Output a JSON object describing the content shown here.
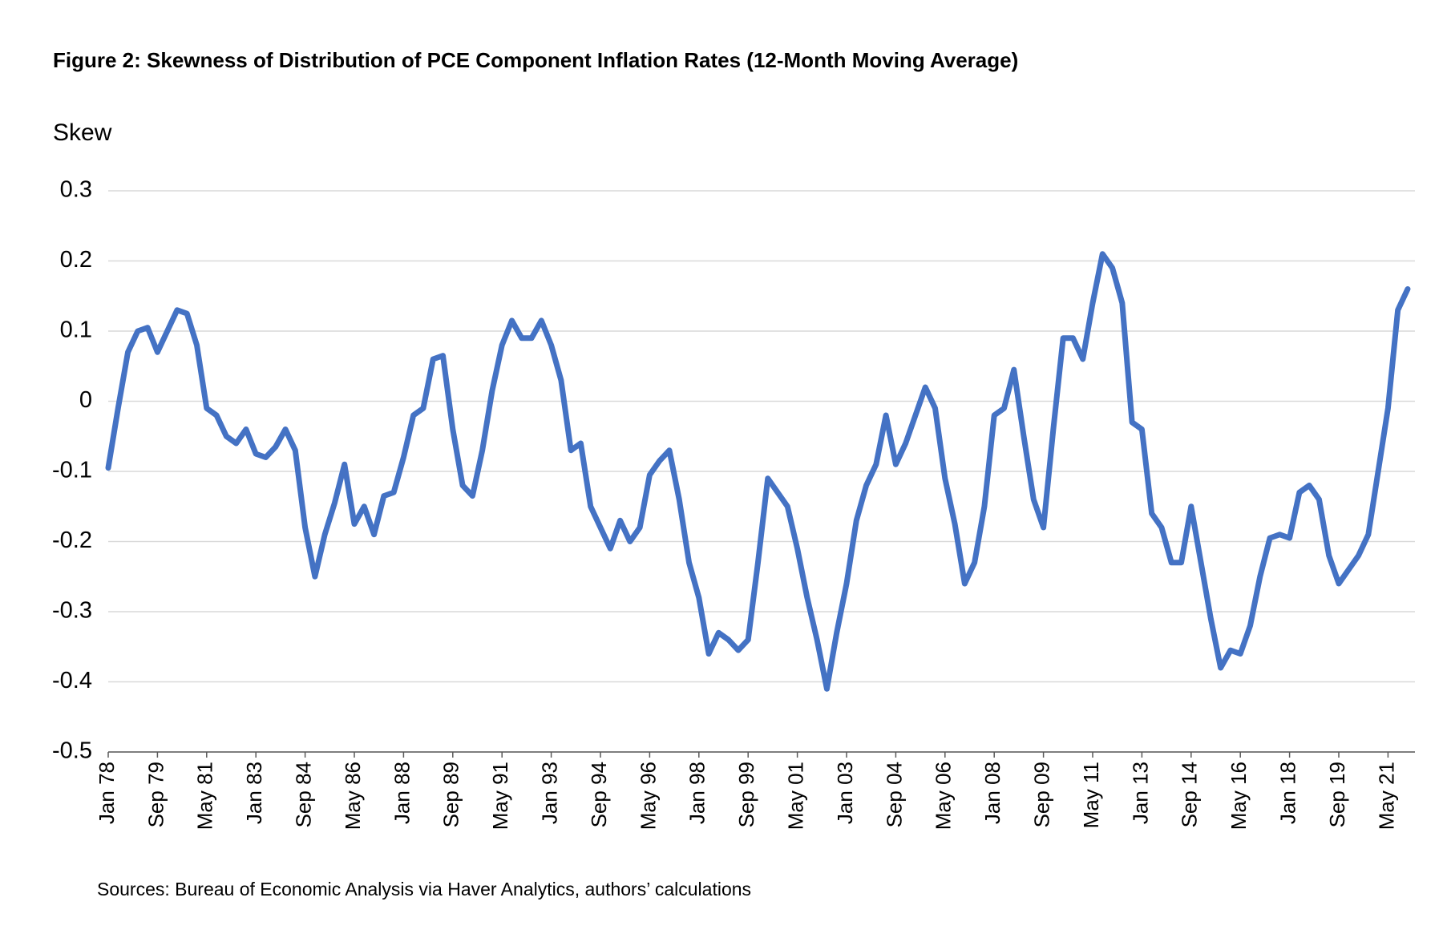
{
  "chart_data": {
    "type": "line",
    "title": "Figure 2: Skewness of Distribution of PCE Component Inflation Rates (12-Month Moving Average)",
    "y_label": "Skew",
    "source": "Sources: Bureau of Economic Analysis via Haver Analytics, authors’ calculations",
    "categories": [
      "Jan 78",
      null,
      null,
      null,
      null,
      "Sep 79",
      null,
      null,
      null,
      null,
      "May 81",
      null,
      null,
      null,
      null,
      "Jan 83",
      null,
      null,
      null,
      null,
      "Sep 84",
      null,
      null,
      null,
      null,
      "May 86",
      null,
      null,
      null,
      null,
      "Jan 88",
      null,
      null,
      null,
      null,
      "Sep 89",
      null,
      null,
      null,
      null,
      "May 91",
      null,
      null,
      null,
      null,
      "Jan 93",
      null,
      null,
      null,
      null,
      "Sep 94",
      null,
      null,
      null,
      null,
      "May 96",
      null,
      null,
      null,
      null,
      "Jan 98",
      null,
      null,
      null,
      null,
      "Sep 99",
      null,
      null,
      null,
      null,
      "May 01",
      null,
      null,
      null,
      null,
      "Jan 03",
      null,
      null,
      null,
      null,
      "Sep 04",
      null,
      null,
      null,
      null,
      "May 06",
      null,
      null,
      null,
      null,
      "Jan 08",
      null,
      null,
      null,
      null,
      "Sep 09",
      null,
      null,
      null,
      null,
      "May 11",
      null,
      null,
      null,
      null,
      "Jan 13",
      null,
      null,
      null,
      null,
      "Sep 14",
      null,
      null,
      null,
      null,
      "May 16",
      null,
      null,
      null,
      null,
      "Jan 18",
      null,
      null,
      null,
      null,
      "Sep 19",
      null,
      null,
      null,
      null,
      "May 21",
      null,
      null
    ],
    "series": [
      {
        "name": "Skew",
        "color": "#4472c4",
        "values": [
          -0.095,
          -0.01,
          0.07,
          0.1,
          0.105,
          0.07,
          0.1,
          0.13,
          0.125,
          0.08,
          -0.01,
          -0.02,
          -0.05,
          -0.06,
          -0.04,
          -0.075,
          -0.08,
          -0.065,
          -0.04,
          -0.07,
          -0.18,
          -0.25,
          -0.19,
          -0.145,
          -0.09,
          -0.175,
          -0.15,
          -0.19,
          -0.135,
          -0.13,
          -0.08,
          -0.02,
          -0.01,
          0.06,
          0.065,
          -0.04,
          -0.12,
          -0.135,
          -0.07,
          0.015,
          0.08,
          0.115,
          0.09,
          0.09,
          0.115,
          0.08,
          0.03,
          -0.07,
          -0.06,
          -0.15,
          -0.18,
          -0.21,
          -0.17,
          -0.2,
          -0.18,
          -0.105,
          -0.085,
          -0.07,
          -0.14,
          -0.23,
          -0.28,
          -0.36,
          -0.33,
          -0.34,
          -0.355,
          -0.34,
          -0.23,
          -0.11,
          -0.13,
          -0.15,
          -0.21,
          -0.28,
          -0.34,
          -0.41,
          -0.33,
          -0.26,
          -0.17,
          -0.12,
          -0.09,
          -0.02,
          -0.09,
          -0.06,
          -0.02,
          0.02,
          -0.01,
          -0.11,
          -0.175,
          -0.26,
          -0.23,
          -0.15,
          -0.02,
          -0.01,
          0.045,
          -0.05,
          -0.14,
          -0.18,
          -0.04,
          0.09,
          0.09,
          0.06,
          0.14,
          0.21,
          0.19,
          0.14,
          -0.03,
          -0.04,
          -0.16,
          -0.18,
          -0.23,
          -0.23,
          -0.15,
          -0.23,
          -0.31,
          -0.38,
          -0.355,
          -0.36,
          -0.32,
          -0.25,
          -0.195,
          -0.19,
          -0.195,
          -0.13,
          -0.12,
          -0.14,
          -0.22,
          -0.26,
          -0.24,
          -0.22,
          -0.19,
          -0.1,
          -0.01,
          0.13,
          0.16
        ]
      }
    ],
    "ylim": [
      -0.5,
      0.3
    ],
    "yticks": [
      0.3,
      0.2,
      0.1,
      0,
      -0.1,
      -0.2,
      -0.3,
      -0.4,
      -0.5
    ],
    "grid": true,
    "legend": false
  }
}
